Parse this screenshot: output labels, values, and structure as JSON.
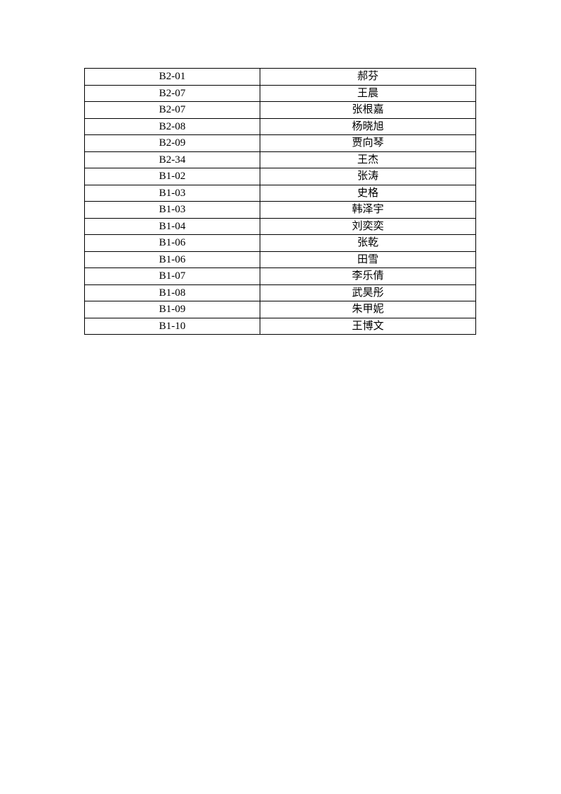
{
  "document": {
    "background_color": "#ffffff",
    "border_color": "#000000",
    "text_color": "#000000"
  },
  "table": {
    "columns": [
      "code",
      "name"
    ],
    "rows": [
      {
        "code": "B2-01",
        "name": "郝芬"
      },
      {
        "code": "B2-07",
        "name": "王晨"
      },
      {
        "code": "B2-07",
        "name": "张根嘉"
      },
      {
        "code": "B2-08",
        "name": "杨晓旭"
      },
      {
        "code": "B2-09",
        "name": "贾向琴"
      },
      {
        "code": "B2-34",
        "name": "王杰"
      },
      {
        "code": "B1-02",
        "name": "张涛"
      },
      {
        "code": "B1-03",
        "name": "史格"
      },
      {
        "code": "B1-03",
        "name": "韩泽宇"
      },
      {
        "code": "B1-04",
        "name": "刘奕奕"
      },
      {
        "code": "B1-06",
        "name": "张乾"
      },
      {
        "code": "B1-06",
        "name": "田雪"
      },
      {
        "code": "B1-07",
        "name": "李乐倩"
      },
      {
        "code": "B1-08",
        "name": "武昊彤"
      },
      {
        "code": "B1-09",
        "name": "朱甲妮"
      },
      {
        "code": "B1-10",
        "name": "王博文"
      }
    ]
  }
}
